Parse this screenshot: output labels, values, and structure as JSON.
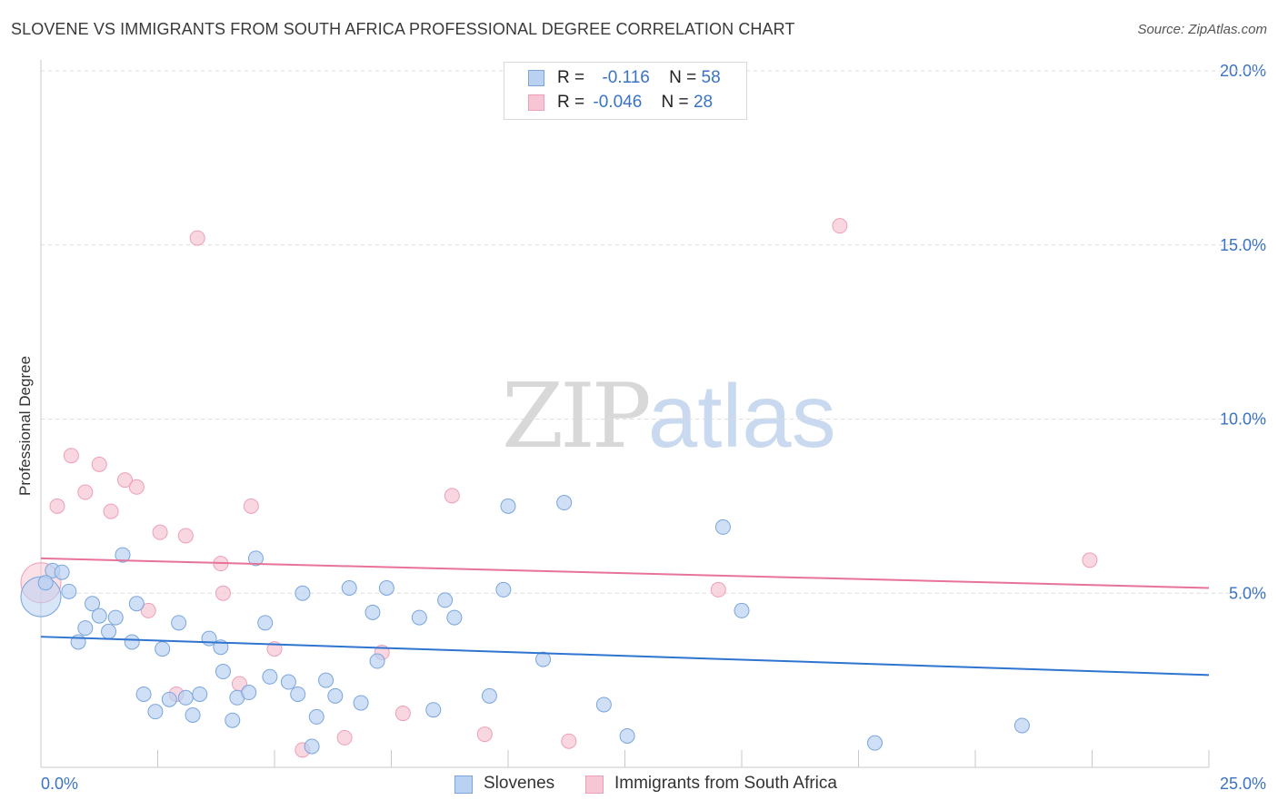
{
  "title": "SLOVENE VS IMMIGRANTS FROM SOUTH AFRICA PROFESSIONAL DEGREE CORRELATION CHART",
  "source": "Source: ZipAtlas.com",
  "watermark": {
    "zip": "ZIP",
    "atlas": "atlas"
  },
  "colors": {
    "blue_fill": "#b9d2f2",
    "blue_stroke": "#7aa5dd",
    "blue_line": "#2f74d0",
    "pink_fill": "#f7c6d4",
    "pink_stroke": "#ee9fb8",
    "pink_line": "#e8739a",
    "grid": "#dcdcdc",
    "tick_text": "#3b73c4"
  },
  "legend": {
    "rows": [
      {
        "r_label": "R =",
        "r_value": "-0.116",
        "n_label": "N =",
        "n_value": "58"
      },
      {
        "r_label": "R =",
        "r_value": "-0.046",
        "n_label": "N =",
        "n_value": "28"
      }
    ]
  },
  "bottom_legend": {
    "series1": "Slovenes",
    "series2": "Immigrants from South Africa"
  },
  "chart_data": {
    "type": "scatter",
    "title": "SLOVENE VS IMMIGRANTS FROM SOUTH AFRICA PROFESSIONAL DEGREE CORRELATION CHART",
    "xlabel": "",
    "ylabel": "Professional Degree",
    "xlim": [
      0,
      25
    ],
    "ylim": [
      0,
      20
    ],
    "x_tick_labels": [
      "0.0%",
      "25.0%"
    ],
    "y_ticks": [
      5,
      10,
      15,
      20
    ],
    "y_tick_labels": [
      "5.0%",
      "10.0%",
      "15.0%",
      "20.0%"
    ],
    "grid": "horizontal dashed",
    "legend_position": "top-center",
    "series": [
      {
        "name": "Slovenes",
        "r": -0.116,
        "n": 58,
        "trend": {
          "x": [
            0,
            25
          ],
          "y": [
            3.75,
            2.65
          ]
        },
        "points": [
          {
            "x": 0.0,
            "y": 4.9,
            "big": true
          },
          {
            "x": 0.25,
            "y": 5.65
          },
          {
            "x": 0.45,
            "y": 5.6
          },
          {
            "x": 0.6,
            "y": 5.05
          },
          {
            "x": 0.8,
            "y": 3.6
          },
          {
            "x": 0.95,
            "y": 4.0
          },
          {
            "x": 1.1,
            "y": 4.7
          },
          {
            "x": 1.25,
            "y": 4.35
          },
          {
            "x": 1.45,
            "y": 3.9
          },
          {
            "x": 1.6,
            "y": 4.3
          },
          {
            "x": 1.75,
            "y": 6.1
          },
          {
            "x": 1.95,
            "y": 3.6
          },
          {
            "x": 2.05,
            "y": 4.7
          },
          {
            "x": 2.2,
            "y": 2.1
          },
          {
            "x": 2.45,
            "y": 1.6
          },
          {
            "x": 2.6,
            "y": 3.4
          },
          {
            "x": 2.75,
            "y": 1.95
          },
          {
            "x": 2.95,
            "y": 4.15
          },
          {
            "x": 3.1,
            "y": 2.0
          },
          {
            "x": 3.25,
            "y": 1.5
          },
          {
            "x": 3.4,
            "y": 2.1
          },
          {
            "x": 3.6,
            "y": 3.7
          },
          {
            "x": 3.85,
            "y": 3.45
          },
          {
            "x": 3.9,
            "y": 2.75
          },
          {
            "x": 4.1,
            "y": 1.35
          },
          {
            "x": 4.2,
            "y": 2.0
          },
          {
            "x": 4.45,
            "y": 2.15
          },
          {
            "x": 4.6,
            "y": 6.0
          },
          {
            "x": 4.8,
            "y": 4.15
          },
          {
            "x": 4.9,
            "y": 2.6
          },
          {
            "x": 5.3,
            "y": 2.45
          },
          {
            "x": 5.5,
            "y": 2.1
          },
          {
            "x": 5.6,
            "y": 5.0
          },
          {
            "x": 5.8,
            "y": 0.6
          },
          {
            "x": 5.9,
            "y": 1.45
          },
          {
            "x": 6.1,
            "y": 2.5
          },
          {
            "x": 6.3,
            "y": 2.05
          },
          {
            "x": 6.6,
            "y": 5.15
          },
          {
            "x": 6.85,
            "y": 1.85
          },
          {
            "x": 7.1,
            "y": 4.45
          },
          {
            "x": 7.2,
            "y": 3.05
          },
          {
            "x": 7.4,
            "y": 5.15
          },
          {
            "x": 8.1,
            "y": 4.3
          },
          {
            "x": 8.4,
            "y": 1.65
          },
          {
            "x": 8.65,
            "y": 4.8
          },
          {
            "x": 8.85,
            "y": 4.3
          },
          {
            "x": 9.6,
            "y": 2.05
          },
          {
            "x": 9.9,
            "y": 5.1
          },
          {
            "x": 10.0,
            "y": 7.5
          },
          {
            "x": 10.75,
            "y": 3.1
          },
          {
            "x": 11.2,
            "y": 7.6
          },
          {
            "x": 12.05,
            "y": 1.8
          },
          {
            "x": 12.55,
            "y": 0.9
          },
          {
            "x": 14.6,
            "y": 6.9
          },
          {
            "x": 15.0,
            "y": 4.5
          },
          {
            "x": 17.85,
            "y": 0.7
          },
          {
            "x": 21.0,
            "y": 1.2
          },
          {
            "x": 0.1,
            "y": 5.3
          }
        ]
      },
      {
        "name": "Immigrants from South Africa",
        "r": -0.046,
        "n": 28,
        "trend": {
          "x": [
            0,
            25
          ],
          "y": [
            6.0,
            5.15
          ]
        },
        "points": [
          {
            "x": 0.0,
            "y": 5.3,
            "big": true
          },
          {
            "x": 0.35,
            "y": 7.5
          },
          {
            "x": 0.65,
            "y": 8.95
          },
          {
            "x": 0.95,
            "y": 7.9
          },
          {
            "x": 1.25,
            "y": 8.7
          },
          {
            "x": 1.5,
            "y": 7.35
          },
          {
            "x": 1.8,
            "y": 8.25
          },
          {
            "x": 2.05,
            "y": 8.05
          },
          {
            "x": 2.3,
            "y": 4.5
          },
          {
            "x": 2.55,
            "y": 6.75
          },
          {
            "x": 2.9,
            "y": 2.1
          },
          {
            "x": 3.1,
            "y": 6.65
          },
          {
            "x": 3.35,
            "y": 15.2
          },
          {
            "x": 3.9,
            "y": 5.0
          },
          {
            "x": 3.85,
            "y": 5.85
          },
          {
            "x": 4.25,
            "y": 2.4
          },
          {
            "x": 4.5,
            "y": 7.5
          },
          {
            "x": 5.0,
            "y": 3.4
          },
          {
            "x": 5.6,
            "y": 0.5
          },
          {
            "x": 6.5,
            "y": 0.85
          },
          {
            "x": 7.3,
            "y": 3.3
          },
          {
            "x": 7.75,
            "y": 1.55
          },
          {
            "x": 8.8,
            "y": 7.8
          },
          {
            "x": 9.5,
            "y": 0.95
          },
          {
            "x": 11.3,
            "y": 0.75
          },
          {
            "x": 14.5,
            "y": 5.1
          },
          {
            "x": 17.1,
            "y": 15.55
          },
          {
            "x": 22.45,
            "y": 5.95
          }
        ]
      }
    ]
  }
}
